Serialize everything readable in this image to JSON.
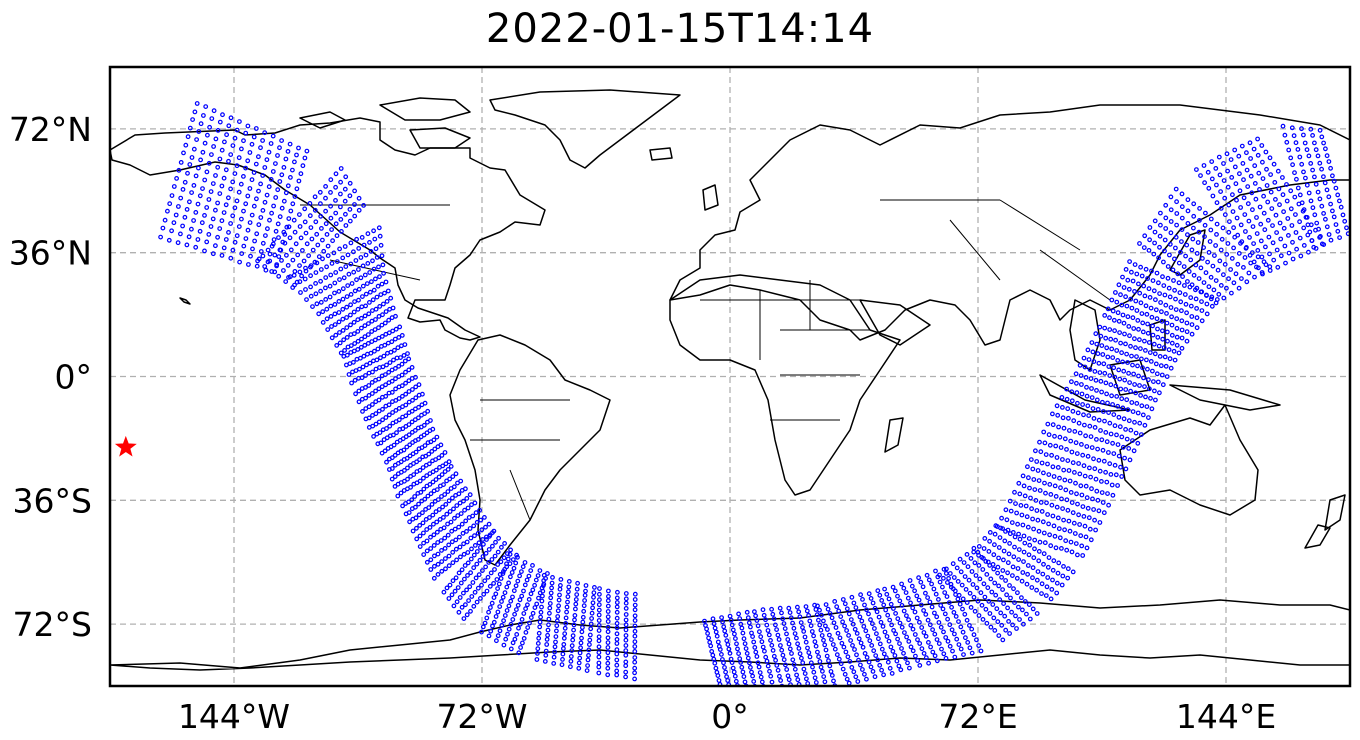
{
  "title": "2022-01-15T14:14",
  "map": {
    "projection": "PlateCarree",
    "lon_range": [
      -180,
      180
    ],
    "lat_range": [
      -90,
      90
    ],
    "gridlines": true,
    "coastlines": true,
    "borders": true,
    "x_ticks": [
      {
        "value": -144,
        "label": "144°W"
      },
      {
        "value": -72,
        "label": "72°W"
      },
      {
        "value": 0,
        "label": "0°"
      },
      {
        "value": 72,
        "label": "72°E"
      },
      {
        "value": 144,
        "label": "144°E"
      }
    ],
    "y_ticks": [
      {
        "value": 72,
        "label": "72°N"
      },
      {
        "value": 36,
        "label": "36°N"
      },
      {
        "value": 0,
        "label": "0°"
      },
      {
        "value": -36,
        "label": "36°S"
      },
      {
        "value": -72,
        "label": "72°S"
      }
    ],
    "marker": {
      "name": "event-location",
      "lon": -175.4,
      "lat": -20.6,
      "color": "#ff0000",
      "symbol": "star"
    },
    "swath_color": "#0000ff",
    "swath_west": {
      "centerline": [
        [
          -160,
          60
        ],
        [
          -125,
          47
        ],
        [
          -115,
          36
        ],
        [
          -110,
          24
        ],
        [
          -104,
          10
        ],
        [
          -101,
          0
        ],
        [
          -97,
          -10
        ],
        [
          -93,
          -20
        ],
        [
          -88,
          -32
        ],
        [
          -82,
          -43
        ],
        [
          -76,
          -54
        ],
        [
          -68,
          -63
        ],
        [
          -55,
          -70
        ],
        [
          -38,
          -74
        ],
        [
          -25,
          -76
        ]
      ],
      "half_width_deg": [
        20,
        18,
        15,
        11,
        9,
        9,
        9,
        8,
        9,
        10,
        11,
        12,
        12,
        12,
        12
      ]
    },
    "swath_east": {
      "centerline": [
        [
          -5,
          -81
        ],
        [
          10,
          -80
        ],
        [
          30,
          -78
        ],
        [
          50,
          -73
        ],
        [
          70,
          -67
        ],
        [
          82,
          -58
        ],
        [
          90,
          -48
        ],
        [
          95,
          -38
        ],
        [
          100,
          -28
        ],
        [
          106,
          -15
        ],
        [
          112,
          -3
        ],
        [
          120,
          13
        ],
        [
          130,
          30
        ],
        [
          145,
          45
        ],
        [
          165,
          55
        ],
        [
          178,
          57
        ]
      ],
      "half_width_deg": [
        10,
        12,
        12,
        12,
        13,
        13,
        13,
        13,
        13,
        13,
        12,
        12,
        14,
        18,
        18,
        15
      ]
    }
  }
}
